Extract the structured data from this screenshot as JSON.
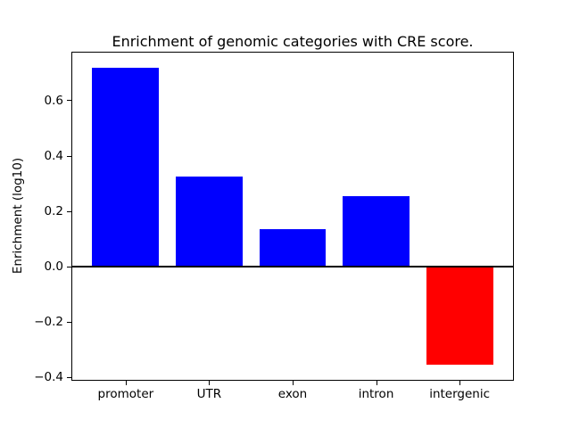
{
  "chart_data": {
    "type": "bar",
    "title": "Enrichment of genomic categories with CRE score.",
    "ylabel": "Enrichment (log10)",
    "xlabel": "",
    "categories": [
      "promoter",
      "UTR",
      "exon",
      "intron",
      "intergenic"
    ],
    "values": [
      0.72,
      0.325,
      0.135,
      0.255,
      -0.355
    ],
    "positive_color": "#0000ff",
    "negative_color": "#ff0000",
    "axes_edge_color": "#000000",
    "background_color": "#ffffff",
    "ylim": [
      -0.409,
      0.774
    ],
    "yticks": [
      0.6,
      0.4,
      0.2,
      0.0,
      -0.2,
      -0.4
    ],
    "ytick_labels": [
      "0.6",
      "0.4",
      "0.2",
      "0.0",
      "−0.2",
      "−0.4"
    ],
    "bar_width_fraction": 0.8,
    "zero_line": true,
    "grid": false,
    "legend": null
  }
}
